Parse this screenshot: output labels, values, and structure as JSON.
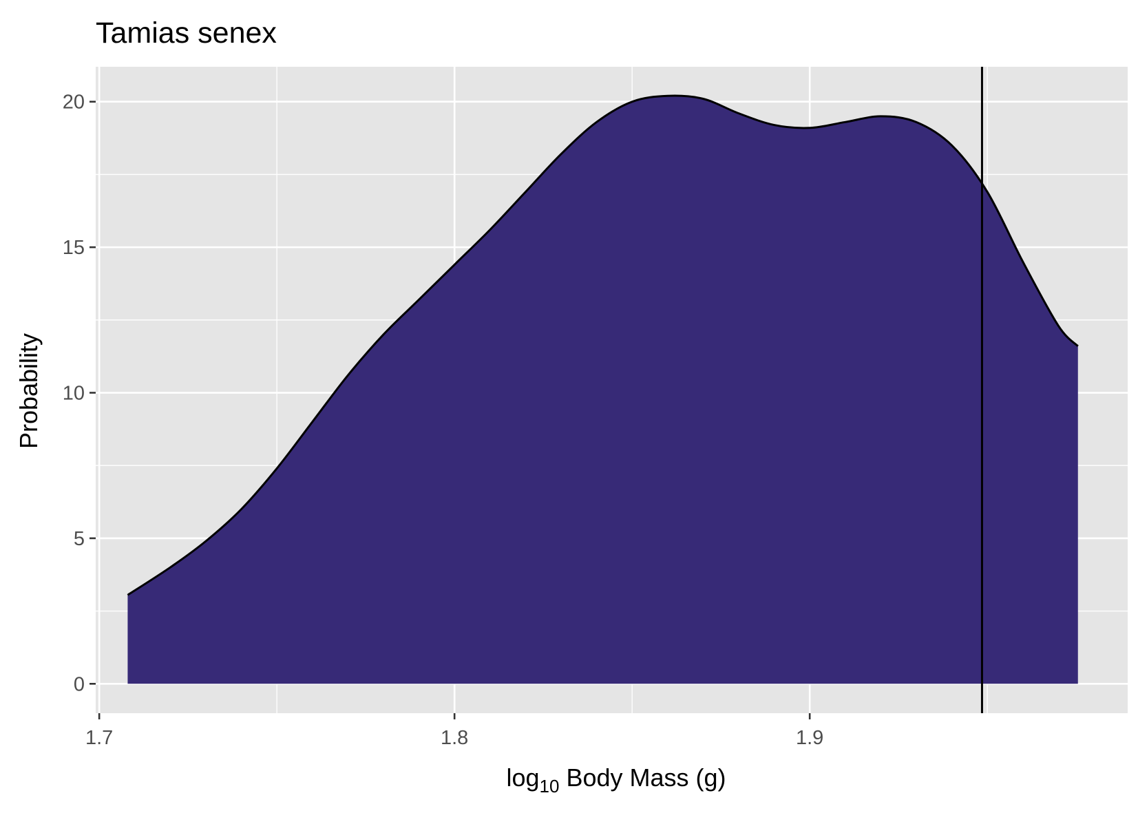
{
  "chart_data": {
    "type": "area",
    "title": "Tamias senex",
    "xlabel": {
      "prefix": "log",
      "subscript": "10",
      "suffix": " Body Mass (g)"
    },
    "ylabel": "Probability",
    "xlim": [
      1.699,
      1.9895
    ],
    "ylim": [
      -1.01,
      21.2
    ],
    "x_ticks": [
      1.7,
      1.8,
      1.9
    ],
    "x_tick_labels": [
      "1.7",
      "1.8",
      "1.9"
    ],
    "y_ticks": [
      0,
      5,
      10,
      15,
      20
    ],
    "y_tick_labels": [
      "0",
      "5",
      "10",
      "15",
      "20"
    ],
    "grid": true,
    "fill_color": "#372A77",
    "line_color": "#000000",
    "panel_color": "#E5E5E5",
    "reference_line_x": 1.9485,
    "series": [
      {
        "x": [
          1.708,
          1.72,
          1.73,
          1.74,
          1.75,
          1.76,
          1.77,
          1.78,
          1.79,
          1.8,
          1.81,
          1.82,
          1.83,
          1.84,
          1.85,
          1.86,
          1.87,
          1.88,
          1.89,
          1.9,
          1.91,
          1.92,
          1.93,
          1.94,
          1.95,
          1.96,
          1.97,
          1.9755
        ],
        "y": [
          3.05,
          4.0,
          4.9,
          6.0,
          7.4,
          9.0,
          10.6,
          12.0,
          13.2,
          14.4,
          15.6,
          16.9,
          18.2,
          19.3,
          20.0,
          20.2,
          20.1,
          19.6,
          19.2,
          19.1,
          19.3,
          19.5,
          19.3,
          18.5,
          16.9,
          14.5,
          12.3,
          11.6
        ]
      }
    ]
  }
}
